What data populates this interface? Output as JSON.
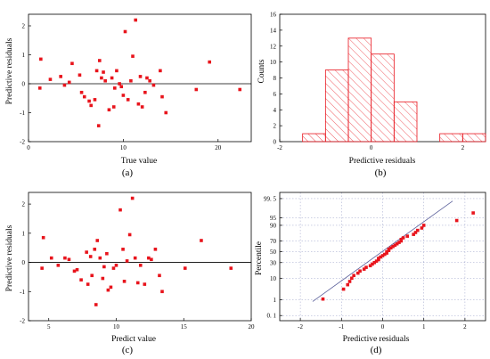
{
  "colors": {
    "marker": "#e8141c",
    "hatch": "#e8141c",
    "axis": "#000000",
    "zero_line": "#000000",
    "grid": "#9aa0c8",
    "fit_line": "#5a5f9a"
  },
  "chart_data": [
    {
      "id": "a",
      "type": "scatter",
      "panel_label": "(a)",
      "xlabel": "True value",
      "ylabel": "Predictive residuals",
      "xlim": [
        0,
        23.5
      ],
      "ylim": [
        -2,
        2.4
      ],
      "xticks": [
        0,
        10,
        20
      ],
      "yticks": [
        -2,
        -1,
        0,
        1,
        2
      ],
      "reference_line_y": 0,
      "points": [
        [
          1.2,
          -0.15
        ],
        [
          1.3,
          0.85
        ],
        [
          2.3,
          0.15
        ],
        [
          3.4,
          0.25
        ],
        [
          3.8,
          -0.05
        ],
        [
          4.3,
          0.05
        ],
        [
          4.6,
          0.7
        ],
        [
          5.4,
          0.3
        ],
        [
          5.6,
          -0.3
        ],
        [
          5.9,
          -0.45
        ],
        [
          6.4,
          -0.6
        ],
        [
          6.6,
          -0.75
        ],
        [
          7.0,
          -0.55
        ],
        [
          7.2,
          0.45
        ],
        [
          7.4,
          -1.45
        ],
        [
          7.5,
          0.8
        ],
        [
          7.7,
          0.2
        ],
        [
          7.9,
          0.4
        ],
        [
          8.1,
          0.1
        ],
        [
          8.5,
          -0.9
        ],
        [
          8.8,
          0.2
        ],
        [
          9.0,
          -0.8
        ],
        [
          9.1,
          -0.15
        ],
        [
          9.3,
          0.45
        ],
        [
          9.6,
          0.0
        ],
        [
          9.8,
          -0.1
        ],
        [
          10.0,
          -0.4
        ],
        [
          10.2,
          1.8
        ],
        [
          10.5,
          -0.55
        ],
        [
          10.8,
          0.1
        ],
        [
          11.0,
          0.95
        ],
        [
          11.3,
          2.2
        ],
        [
          11.6,
          -0.7
        ],
        [
          11.8,
          0.25
        ],
        [
          12.0,
          -0.8
        ],
        [
          12.3,
          -0.3
        ],
        [
          12.5,
          0.2
        ],
        [
          12.8,
          0.1
        ],
        [
          13.2,
          -0.05
        ],
        [
          13.9,
          0.45
        ],
        [
          14.1,
          -0.45
        ],
        [
          14.5,
          -1.0
        ],
        [
          17.7,
          -0.2
        ],
        [
          19.1,
          0.75
        ],
        [
          22.3,
          -0.2
        ]
      ]
    },
    {
      "id": "b",
      "type": "bar",
      "subtype": "histogram",
      "panel_label": "(b)",
      "xlabel": "Predictive residuals",
      "ylabel": "Counts",
      "xlim": [
        -2,
        2.5
      ],
      "ylim": [
        0,
        16
      ],
      "xticks": [
        -2,
        0,
        2
      ],
      "yticks": [
        0,
        2,
        4,
        6,
        8,
        10,
        12,
        14,
        16
      ],
      "bin_edges": [
        -1.5,
        -1.0,
        -0.5,
        0.0,
        0.5,
        1.0,
        1.5,
        2.0,
        2.5
      ],
      "values": [
        1,
        9,
        13,
        11,
        5,
        0,
        1,
        1
      ]
    },
    {
      "id": "c",
      "type": "scatter",
      "panel_label": "(c)",
      "xlabel": "Predict value",
      "ylabel": "Predictive residuals",
      "xlim": [
        3.5,
        20
      ],
      "ylim": [
        -2,
        2.4
      ],
      "xticks": [
        5,
        10,
        15,
        20
      ],
      "yticks": [
        -2,
        -1,
        0,
        1,
        2
      ],
      "reference_line_y": 0,
      "points": [
        [
          4.5,
          -0.2
        ],
        [
          4.6,
          0.85
        ],
        [
          5.2,
          0.15
        ],
        [
          5.7,
          -0.1
        ],
        [
          6.2,
          0.15
        ],
        [
          6.5,
          0.1
        ],
        [
          6.9,
          -0.3
        ],
        [
          7.1,
          -0.25
        ],
        [
          7.4,
          -0.6
        ],
        [
          7.8,
          0.35
        ],
        [
          7.9,
          -0.75
        ],
        [
          8.1,
          0.2
        ],
        [
          8.2,
          -0.45
        ],
        [
          8.4,
          0.45
        ],
        [
          8.5,
          -1.45
        ],
        [
          8.6,
          0.75
        ],
        [
          8.8,
          0.15
        ],
        [
          9.0,
          -0.55
        ],
        [
          9.1,
          -0.15
        ],
        [
          9.3,
          0.3
        ],
        [
          9.4,
          -0.95
        ],
        [
          9.6,
          -0.85
        ],
        [
          9.8,
          -0.2
        ],
        [
          10.0,
          -0.1
        ],
        [
          10.3,
          1.8
        ],
        [
          10.5,
          0.45
        ],
        [
          10.6,
          -0.65
        ],
        [
          10.8,
          0.05
        ],
        [
          11.0,
          0.95
        ],
        [
          11.2,
          2.2
        ],
        [
          11.4,
          0.15
        ],
        [
          11.6,
          -0.7
        ],
        [
          11.8,
          -0.1
        ],
        [
          12.1,
          -0.75
        ],
        [
          12.4,
          0.15
        ],
        [
          12.6,
          0.1
        ],
        [
          12.9,
          0.45
        ],
        [
          13.2,
          -0.45
        ],
        [
          13.4,
          -1.0
        ],
        [
          15.1,
          -0.2
        ],
        [
          16.3,
          0.75
        ],
        [
          18.5,
          -0.2
        ]
      ]
    },
    {
      "id": "d",
      "type": "scatter",
      "subtype": "normal probability plot",
      "panel_label": "(d)",
      "xlabel": "Predictive residuals",
      "ylabel": "Percentile",
      "xlim": [
        -2.5,
        2.5
      ],
      "xticks": [
        -2,
        -1,
        0,
        1,
        2
      ],
      "yticks": [
        0.1,
        1,
        10,
        30,
        50,
        70,
        90,
        95,
        99.5
      ],
      "ytick_labels": [
        "0. 1",
        "1",
        "10",
        "30",
        "50",
        "70",
        "90",
        "95",
        "99. 5"
      ],
      "fit_line": [
        [
          -1.7,
          0.8
        ],
        [
          1.7,
          99.3
        ]
      ],
      "points": [
        [
          -1.45,
          1.1
        ],
        [
          -0.95,
          3.5
        ],
        [
          -0.85,
          5.5
        ],
        [
          -0.8,
          7.5
        ],
        [
          -0.75,
          10
        ],
        [
          -0.7,
          12.5
        ],
        [
          -0.6,
          15
        ],
        [
          -0.55,
          17.5
        ],
        [
          -0.45,
          20
        ],
        [
          -0.4,
          22.5
        ],
        [
          -0.3,
          25
        ],
        [
          -0.25,
          27.5
        ],
        [
          -0.2,
          30
        ],
        [
          -0.15,
          32.5
        ],
        [
          -0.1,
          35
        ],
        [
          -0.1,
          37.5
        ],
        [
          -0.05,
          40
        ],
        [
          0.0,
          42.5
        ],
        [
          0.05,
          45
        ],
        [
          0.1,
          47.5
        ],
        [
          0.1,
          50
        ],
        [
          0.15,
          52.5
        ],
        [
          0.15,
          55
        ],
        [
          0.2,
          57.5
        ],
        [
          0.25,
          60
        ],
        [
          0.3,
          62.5
        ],
        [
          0.35,
          65
        ],
        [
          0.4,
          67.5
        ],
        [
          0.45,
          70
        ],
        [
          0.45,
          72.5
        ],
        [
          0.5,
          75
        ],
        [
          0.6,
          77.5
        ],
        [
          0.75,
          80
        ],
        [
          0.8,
          82.5
        ],
        [
          0.85,
          85
        ],
        [
          0.95,
          87.5
        ],
        [
          1.0,
          90
        ],
        [
          1.8,
          93.5
        ],
        [
          2.2,
          97
        ]
      ]
    }
  ]
}
